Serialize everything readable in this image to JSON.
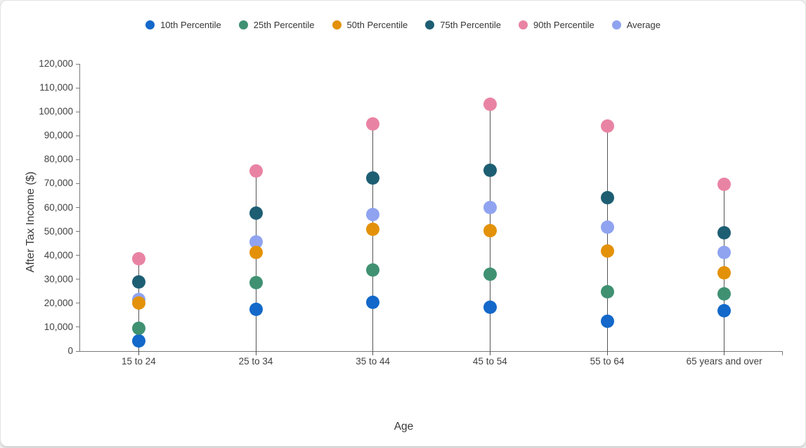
{
  "chart_data": {
    "type": "scatter",
    "title": "",
    "xlabel": "Age",
    "ylabel": "After Tax Income ($)",
    "categories": [
      "15 to 24",
      "25 to 34",
      "35 to 44",
      "45 to 54",
      "55 to 64",
      "65 years and over"
    ],
    "series": [
      {
        "name": "10th Percentile",
        "color": "#1368c9",
        "values": [
          4300,
          17400,
          20400,
          18200,
          12600,
          16800
        ]
      },
      {
        "name": "25th Percentile",
        "color": "#3f9172",
        "values": [
          9500,
          28500,
          33900,
          32100,
          24800,
          23900
        ]
      },
      {
        "name": "50th Percentile",
        "color": "#e39108",
        "values": [
          20100,
          41300,
          51000,
          50300,
          41700,
          32800
        ]
      },
      {
        "name": "75th Percentile",
        "color": "#1d5e73",
        "values": [
          29000,
          57700,
          72400,
          75500,
          64200,
          49400
        ]
      },
      {
        "name": "90th Percentile",
        "color": "#e983a3",
        "values": [
          38700,
          75400,
          95000,
          103000,
          93900,
          69700
        ]
      },
      {
        "name": "Average",
        "color": "#8fa3f0",
        "values": [
          21700,
          45600,
          57200,
          59900,
          51700,
          41300
        ]
      }
    ],
    "ylim": [
      0,
      120000
    ],
    "yticks": [
      0,
      10000,
      20000,
      30000,
      40000,
      50000,
      60000,
      70000,
      80000,
      90000,
      100000,
      110000,
      120000
    ],
    "grid": false,
    "legend_position": "top",
    "marker_diameter_px": 19,
    "stem_color": "#555555",
    "axis_color": "#7a7a7a",
    "text_color": "#414141"
  }
}
